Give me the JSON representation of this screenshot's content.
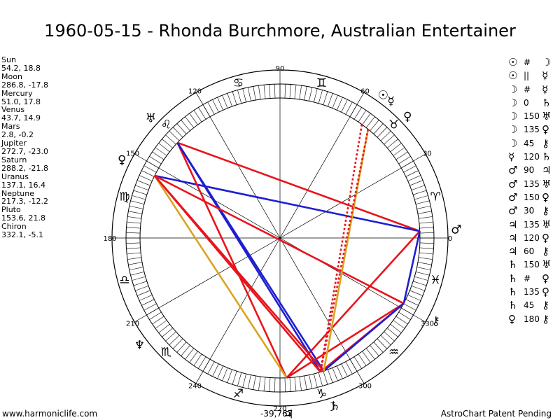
{
  "title": "1960-05-15 - Rhonda Burchmore, Australian Entertainer",
  "footer": {
    "left": "www.harmoniclife.com",
    "right": "AstroChart Patent Pending",
    "center": "-39,767"
  },
  "colors": {
    "red": "#e8141c",
    "blue": "#1e1ed2",
    "gold": "#d9a420",
    "ink": "#000000"
  },
  "planets": [
    {
      "name": "Sun",
      "coords": "54.2, 18.8",
      "lon": 54.2,
      "glyph": "☉"
    },
    {
      "name": "Moon",
      "coords": "286.8, -17.8",
      "lon": 286.8,
      "glyph": "☽"
    },
    {
      "name": "Mercury",
      "coords": "51.0, 17.8",
      "lon": 51.0,
      "glyph": "☿"
    },
    {
      "name": "Venus",
      "coords": "43.7, 14.9",
      "lon": 43.7,
      "glyph": "♀"
    },
    {
      "name": "Mars",
      "coords": "2.8, -0.2",
      "lon": 2.8,
      "glyph": "♂"
    },
    {
      "name": "Jupiter",
      "coords": "272.7, -23.0",
      "lon": 272.7,
      "glyph": "♃"
    },
    {
      "name": "Saturn",
      "coords": "288.2, -21.8",
      "lon": 288.2,
      "glyph": "♄"
    },
    {
      "name": "Uranus",
      "coords": "137.1, 16.4",
      "lon": 137.1,
      "glyph": "♅"
    },
    {
      "name": "Neptune",
      "coords": "217.3, -12.2",
      "lon": 217.3,
      "glyph": "♆"
    },
    {
      "name": "Pluto",
      "coords": "153.6, 21.8",
      "lon": 153.6,
      "glyph": "♀"
    },
    {
      "name": "Chiron",
      "coords": "332.1, -5.1",
      "lon": 332.1,
      "glyph": "⚷"
    }
  ],
  "aspects": [
    {
      "g1": "☉",
      "angle": "#",
      "g2": "☽"
    },
    {
      "g1": "☉",
      "angle": "||",
      "g2": "☿"
    },
    {
      "g1": "☽",
      "angle": "#",
      "g2": "☿"
    },
    {
      "g1": "☽",
      "angle": "0",
      "g2": "♄"
    },
    {
      "g1": "☽",
      "angle": "150",
      "g2": "♅"
    },
    {
      "g1": "☽",
      "angle": "135",
      "g2": "♀"
    },
    {
      "g1": "☽",
      "angle": "45",
      "g2": "⚷"
    },
    {
      "g1": "☿",
      "angle": "120",
      "g2": "♄"
    },
    {
      "g1": "♂",
      "angle": "90",
      "g2": "♃"
    },
    {
      "g1": "♂",
      "angle": "135",
      "g2": "♅"
    },
    {
      "g1": "♂",
      "angle": "150",
      "g2": "♀"
    },
    {
      "g1": "♂",
      "angle": "30",
      "g2": "⚷"
    },
    {
      "g1": "♃",
      "angle": "135",
      "g2": "♅"
    },
    {
      "g1": "♃",
      "angle": "120",
      "g2": "♀"
    },
    {
      "g1": "♃",
      "angle": "60",
      "g2": "⚷"
    },
    {
      "g1": "♄",
      "angle": "150",
      "g2": "♅"
    },
    {
      "g1": "♄",
      "angle": "#",
      "g2": "♀"
    },
    {
      "g1": "♄",
      "angle": "135",
      "g2": "♀"
    },
    {
      "g1": "♄",
      "angle": "45",
      "g2": "⚷"
    },
    {
      "g1": "♀",
      "angle": "180",
      "g2": "⚷"
    }
  ],
  "chart_data": {
    "type": "radial",
    "title": "1960-05-15 - Rhonda Burchmore, Australian Entertainer",
    "degree_labels": [
      "0",
      "30",
      "60",
      "90",
      "120",
      "150",
      "180",
      "210",
      "240",
      "270",
      "300",
      "330"
    ],
    "signs": [
      "♈",
      "♉",
      "♊",
      "♋",
      "♌",
      "♍",
      "♎",
      "♏",
      "♐",
      "♑",
      "♒",
      "♓"
    ],
    "aspect_lines": [
      {
        "from": 2.8,
        "to": 137.1,
        "color": "red"
      },
      {
        "from": 2.8,
        "to": 153.6,
        "color": "blue"
      },
      {
        "from": 2.8,
        "to": 272.7,
        "color": "red"
      },
      {
        "from": 2.8,
        "to": 332.1,
        "color": "blue"
      },
      {
        "from": 137.1,
        "to": 272.7,
        "color": "red"
      },
      {
        "from": 137.1,
        "to": 286.8,
        "color": "blue"
      },
      {
        "from": 137.1,
        "to": 288.2,
        "color": "blue"
      },
      {
        "from": 153.6,
        "to": 272.7,
        "color": "gold"
      },
      {
        "from": 153.6,
        "to": 286.8,
        "color": "red"
      },
      {
        "from": 153.6,
        "to": 288.2,
        "color": "red"
      },
      {
        "from": 153.6,
        "to": 332.1,
        "color": "red"
      },
      {
        "from": 272.7,
        "to": 332.1,
        "color": "red"
      },
      {
        "from": 286.8,
        "to": 332.1,
        "color": "red"
      },
      {
        "from": 288.2,
        "to": 332.1,
        "color": "blue"
      },
      {
        "from": 51.0,
        "to": 288.2,
        "color": "gold"
      },
      {
        "from": 54.2,
        "to": 286.8,
        "color": "red",
        "dashed": true
      },
      {
        "from": 51.0,
        "to": 286.8,
        "color": "red",
        "dashed": true
      },
      {
        "from": 153.6,
        "to": 286.8,
        "color": "red",
        "dashed": true
      }
    ]
  }
}
